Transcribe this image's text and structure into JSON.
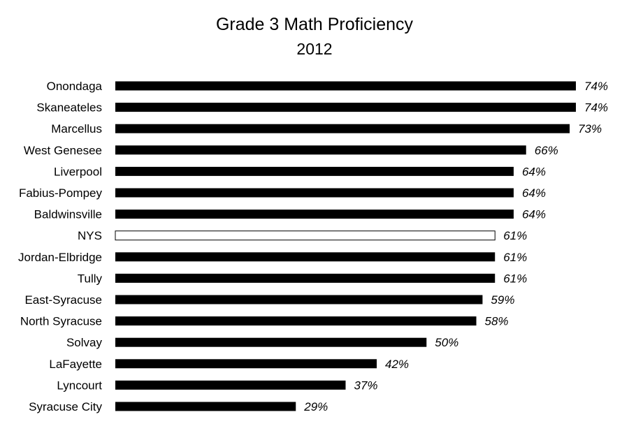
{
  "chart_data": {
    "type": "bar",
    "orientation": "horizontal",
    "title": "Grade 3 Math Proficiency",
    "subtitle": "2012",
    "categories": [
      "Onondaga",
      "Skaneateles",
      "Marcellus",
      "West Genesee",
      "Liverpool",
      "Fabius-Pompey",
      "Baldwinsville",
      "NYS",
      "Jordan-Elbridge",
      "Tully",
      "East-Syracuse",
      "North Syracuse",
      "Solvay",
      "LaFayette",
      "Lyncourt",
      "Syracuse City"
    ],
    "values": [
      74,
      74,
      73,
      66,
      64,
      64,
      64,
      61,
      61,
      61,
      59,
      58,
      50,
      42,
      37,
      29
    ],
    "value_labels": [
      "74%",
      "74%",
      "73%",
      "66%",
      "64%",
      "64%",
      "64%",
      "61%",
      "61%",
      "61%",
      "59%",
      "58%",
      "50%",
      "42%",
      "37%",
      "29%"
    ],
    "highlight_category": "NYS",
    "xlim": [
      0,
      74
    ],
    "grid": false,
    "legend": "none",
    "colors": {
      "bar": "#000000",
      "highlight_fill": "#ffffff",
      "highlight_stroke": "#000000"
    }
  }
}
